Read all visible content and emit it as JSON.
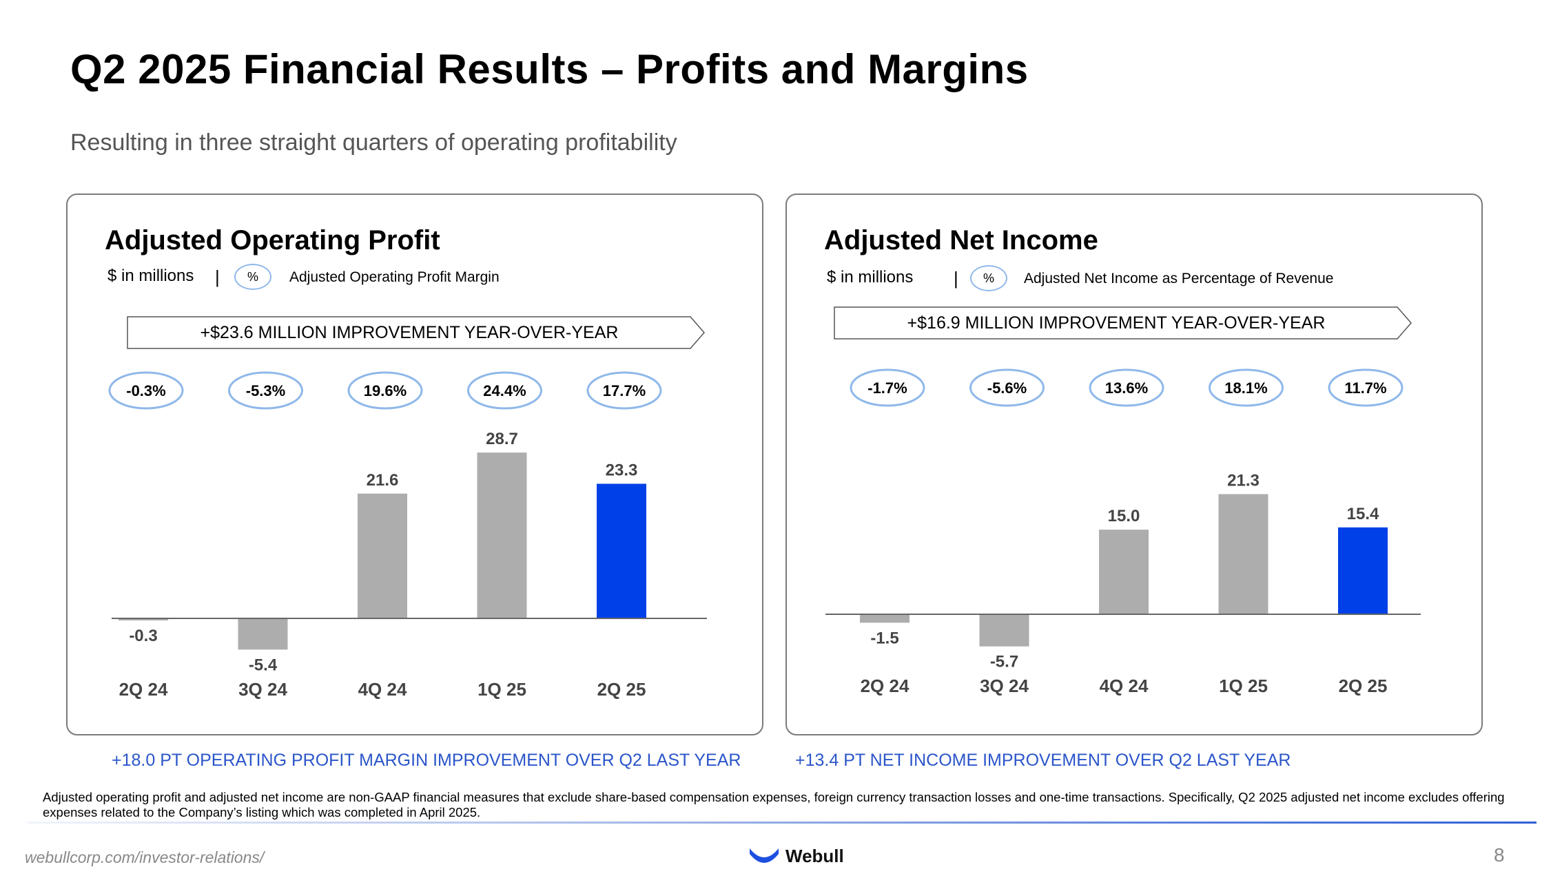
{
  "title": "Q2 2025 Financial Results – Profits and Margins",
  "subtitle": "Resulting in three straight quarters of operating profitability",
  "colors": {
    "bar_gray": "#adadad",
    "bar_highlight": "#0040e8",
    "ellipse_border": "#8fb8ea",
    "blue_text": "#2b55c9"
  },
  "panels": [
    {
      "title": "Adjusted Operating Profit",
      "units": "$ in millions",
      "separator": "|",
      "key_symbol": "%",
      "key_label": "Adjusted Operating Profit Margin",
      "banner": "+$23.6 MILLION IMPROVEMENT YEAR-OVER-YEAR",
      "footnote": "+18.0 PT OPERATING PROFIT MARGIN IMPROVEMENT OVER Q2 LAST YEAR"
    },
    {
      "title": "Adjusted Net Income",
      "units": "$ in millions",
      "separator": "|",
      "key_symbol": "%",
      "key_label": "Adjusted Net Income as Percentage of Revenue",
      "banner": "+$16.9 MILLION IMPROVEMENT YEAR-OVER-YEAR",
      "footnote": "+13.4 PT NET INCOME IMPROVEMENT OVER Q2 LAST YEAR"
    }
  ],
  "chart_data": [
    {
      "type": "bar",
      "title": "Adjusted Operating Profit",
      "ylabel": "$ in millions",
      "categories": [
        "2Q 24",
        "3Q 24",
        "4Q 24",
        "1Q 25",
        "2Q 25"
      ],
      "values": [
        -0.3,
        -5.4,
        21.6,
        28.7,
        23.3
      ],
      "value_labels": [
        "-0.3",
        "-5.4",
        "21.6",
        "28.7",
        "23.3"
      ],
      "margins": [
        "-0.3%",
        "-5.3%",
        "19.6%",
        "24.4%",
        "17.7%"
      ],
      "highlight_index": 4,
      "ylim": [
        -6,
        30
      ]
    },
    {
      "type": "bar",
      "title": "Adjusted Net Income",
      "ylabel": "$ in millions",
      "categories": [
        "2Q 24",
        "3Q 24",
        "4Q 24",
        "1Q 25",
        "2Q 25"
      ],
      "values": [
        -1.5,
        -5.7,
        15.0,
        21.3,
        15.4
      ],
      "value_labels": [
        "-1.5",
        "-5.7",
        "15.0",
        "21.3",
        "15.4"
      ],
      "margins": [
        "-1.7%",
        "-5.6%",
        "13.6%",
        "18.1%",
        "11.7%"
      ],
      "highlight_index": 4,
      "ylim": [
        -6,
        30
      ]
    }
  ],
  "disclaimer": "Adjusted operating profit and adjusted net income are non-GAAP financial measures that exclude share-based compensation expenses, foreign currency transaction losses and one-time transactions. Specifically, Q2 2025 adjusted net income excludes offering expenses related to the Company’s listing which was completed in April 2025.",
  "footer": {
    "url": "webullcorp.com/investor-relations/",
    "logo_text": "Webull",
    "logo_icon": "webull-smile-icon",
    "page_number": "8"
  }
}
